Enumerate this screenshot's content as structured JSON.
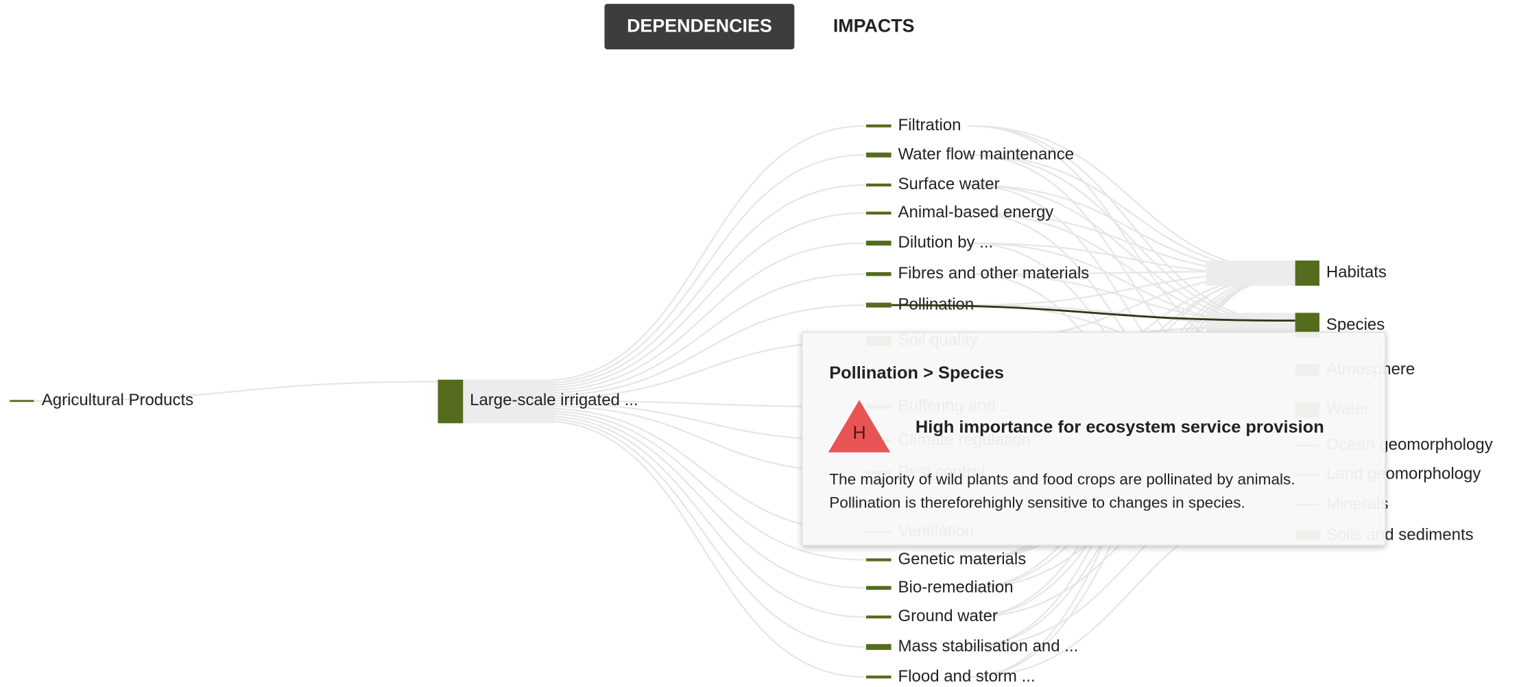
{
  "tabs": [
    "DEPENDENCIES",
    "IMPACTS"
  ],
  "source": "Agricultural Products",
  "process": "Large-scale irrigated ...",
  "services": [
    "Filtration",
    "Water flow maintenance",
    "Surface water",
    "Animal-based energy",
    "Dilution by ...",
    "Fibres and other materials",
    "Pollination",
    "Soil quality",
    "Buffering and ...",
    "Climate regulation",
    "Pest control",
    "Ventilation",
    "Genetic materials",
    "Bio-remediation",
    "Ground water",
    "Mass stabilisation and ...",
    "Flood and storm ..."
  ],
  "assets": [
    "Habitats",
    "Species",
    "Atmosphere",
    "Water",
    "Ocean geomorphology",
    "Land geomorphology",
    "Minerals",
    "Soils and sediments"
  ],
  "tooltip": {
    "title": "Pollination > Species",
    "badge": "H",
    "heading": "High importance for ecosystem service provision",
    "body": [
      "The majority of wild plants and food crops are pollinated by animals.",
      "Pollination is thereforehighly sensitive to changes in species."
    ]
  }
}
